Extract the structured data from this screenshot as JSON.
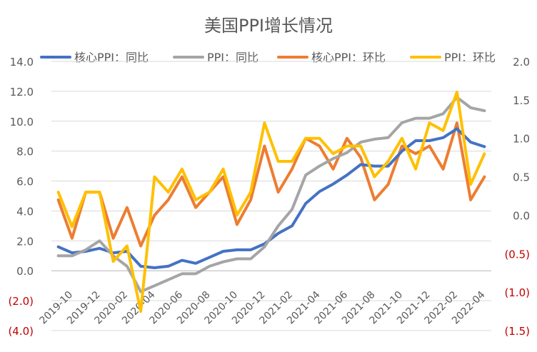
{
  "chart_data": {
    "type": "line",
    "title": "美国PPI增长情况",
    "legend_position": "top",
    "grid": "horizontal",
    "x": [
      "2019-10",
      "2019-11",
      "2019-12",
      "2020-01",
      "2020-02",
      "2020-03",
      "2020-04",
      "2020-05",
      "2020-06",
      "2020-07",
      "2020-08",
      "2020-09",
      "2020-10",
      "2020-11",
      "2020-12",
      "2021-01",
      "2021-02",
      "2021-03",
      "2021-04",
      "2021-05",
      "2021-06",
      "2021-07",
      "2021-08",
      "2021-09",
      "2021-10",
      "2021-11",
      "2021-12",
      "2022-01",
      "2022-02",
      "2022-03",
      "2022-04",
      "2022-05"
    ],
    "x_tick_labels": [
      "2019-10",
      "2019-12",
      "2020-02",
      "2020-04",
      "2020-06",
      "2020-08",
      "2020-10",
      "2020-12",
      "2021-02",
      "2021-04",
      "2021-06",
      "2021-08",
      "2021-10",
      "2021-12",
      "2022-02",
      "2022-04"
    ],
    "y_left": {
      "range": [
        -4,
        14
      ],
      "ticks": [
        "14.0",
        "12.0",
        "10.0",
        "8.0",
        "6.0",
        "4.0",
        "2.0",
        "0.0",
        "(2.0)",
        "(4.0)"
      ]
    },
    "y_right": {
      "range": [
        -1.5,
        2.0
      ],
      "ticks": [
        "2.0",
        "1.5",
        "1.0",
        "0.5",
        "0.0",
        "(0.5)",
        "(1.0)",
        "(1.5)"
      ]
    },
    "series": [
      {
        "name": "核心PPI：同比",
        "axis": "left",
        "color": "#4472C4",
        "values": [
          1.6,
          1.2,
          1.3,
          1.5,
          1.2,
          1.3,
          0.3,
          0.2,
          0.3,
          0.7,
          0.5,
          0.9,
          1.3,
          1.4,
          1.4,
          1.8,
          2.5,
          3.0,
          4.5,
          5.3,
          5.8,
          6.4,
          7.1,
          7.0,
          7.0,
          8.0,
          8.7,
          8.7,
          8.9,
          9.5,
          8.6,
          8.3
        ]
      },
      {
        "name": "PPI：同比",
        "axis": "left",
        "color": "#A5A5A5",
        "values": [
          1.0,
          1.0,
          1.4,
          2.0,
          1.0,
          0.3,
          -1.4,
          -1.0,
          -0.6,
          -0.2,
          -0.2,
          0.3,
          0.6,
          0.8,
          0.8,
          1.6,
          3.0,
          4.1,
          6.4,
          7.0,
          7.5,
          7.9,
          8.6,
          8.8,
          8.9,
          9.9,
          10.2,
          10.2,
          10.5,
          11.6,
          10.9,
          10.7
        ]
      },
      {
        "name": "核心PPI：环比",
        "axis": "right",
        "color": "#ED7D31",
        "values": [
          0.2,
          -0.3,
          0.3,
          0.3,
          -0.3,
          0.1,
          -0.4,
          0.0,
          0.2,
          0.5,
          0.1,
          0.3,
          0.5,
          -0.12,
          0.2,
          0.9,
          0.3,
          0.6,
          1.0,
          0.9,
          0.6,
          1.0,
          0.75,
          0.2,
          0.4,
          0.9,
          0.8,
          0.9,
          0.6,
          1.2,
          0.2,
          0.5
        ]
      },
      {
        "name": "PPI：环比",
        "axis": "right",
        "color": "#FFC000",
        "values": [
          0.3,
          -0.15,
          0.3,
          0.3,
          -0.6,
          -0.4,
          -1.25,
          0.5,
          0.3,
          0.6,
          0.2,
          0.3,
          0.6,
          0.0,
          0.3,
          1.2,
          0.7,
          0.7,
          1.0,
          1.0,
          0.8,
          0.9,
          0.9,
          0.5,
          0.7,
          1.0,
          0.6,
          1.2,
          1.1,
          1.6,
          0.4,
          0.8
        ]
      }
    ]
  },
  "colors": {
    "negative_tick": "#C00000",
    "tick": "#595959",
    "gridline": "#D9D9D9"
  }
}
